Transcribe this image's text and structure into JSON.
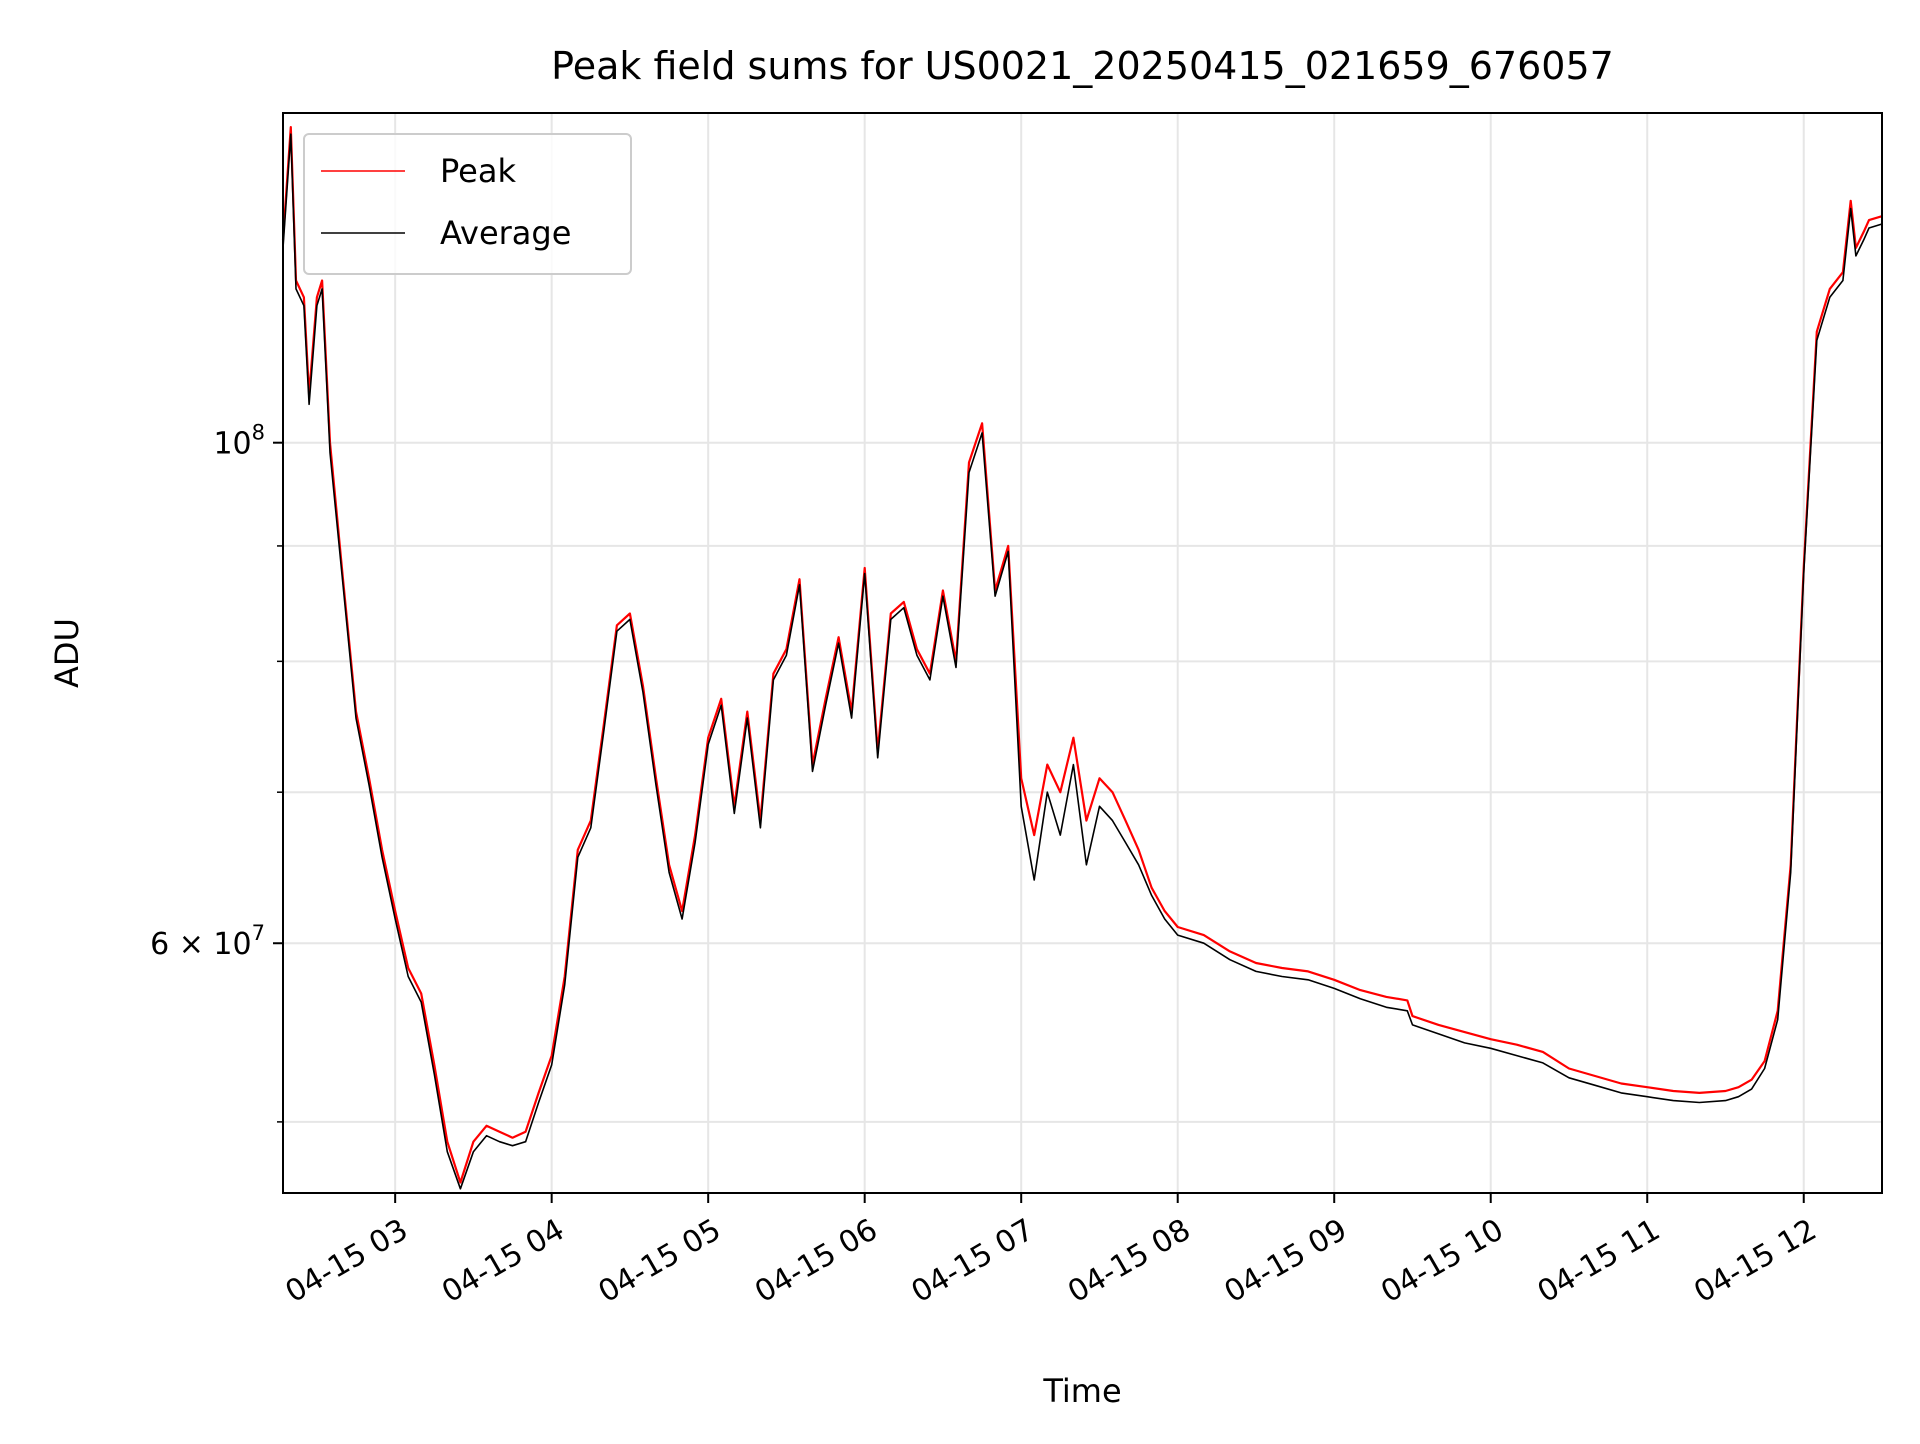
{
  "chart_data": {
    "type": "line",
    "title": "Peak field sums for US0021_20250415_021659_676057",
    "xlabel": "Time",
    "ylabel": "ADU",
    "y_scale": "log",
    "xlim": [
      "2025-04-15 02:17",
      "2025-04-15 12:30"
    ],
    "ylim": [
      46500000,
      140000000
    ],
    "grid": true,
    "legend_position": "top-left",
    "x_ticks": [
      {
        "t": "2025-04-15 03:00",
        "label": "04-15 03"
      },
      {
        "t": "2025-04-15 04:00",
        "label": "04-15 04"
      },
      {
        "t": "2025-04-15 05:00",
        "label": "04-15 05"
      },
      {
        "t": "2025-04-15 06:00",
        "label": "04-15 06"
      },
      {
        "t": "2025-04-15 07:00",
        "label": "04-15 07"
      },
      {
        "t": "2025-04-15 08:00",
        "label": "04-15 08"
      },
      {
        "t": "2025-04-15 09:00",
        "label": "04-15 09"
      },
      {
        "t": "2025-04-15 10:00",
        "label": "04-15 10"
      },
      {
        "t": "2025-04-15 11:00",
        "label": "04-15 11"
      },
      {
        "t": "2025-04-15 12:00",
        "label": "04-15 12"
      }
    ],
    "y_major_ticks": [
      {
        "value": 60000000,
        "base": "6 × 10",
        "exp": "7"
      },
      {
        "value": 100000000,
        "base": "10",
        "exp": "8"
      }
    ],
    "y_minor_ticks": [
      50000000,
      70000000,
      80000000,
      90000000
    ],
    "series": [
      {
        "name": "Peak",
        "color": "#ff0000",
        "x": [
          "2025-04-15 02:17",
          "2025-04-15 02:20",
          "2025-04-15 02:22",
          "2025-04-15 02:25",
          "2025-04-15 02:27",
          "2025-04-15 02:30",
          "2025-04-15 02:32",
          "2025-04-15 02:35",
          "2025-04-15 02:40",
          "2025-04-15 02:45",
          "2025-04-15 02:50",
          "2025-04-15 02:55",
          "2025-04-15 03:00",
          "2025-04-15 03:05",
          "2025-04-15 03:10",
          "2025-04-15 03:15",
          "2025-04-15 03:20",
          "2025-04-15 03:25",
          "2025-04-15 03:30",
          "2025-04-15 03:35",
          "2025-04-15 03:40",
          "2025-04-15 03:45",
          "2025-04-15 03:50",
          "2025-04-15 03:55",
          "2025-04-15 04:00",
          "2025-04-15 04:05",
          "2025-04-15 04:10",
          "2025-04-15 04:15",
          "2025-04-15 04:20",
          "2025-04-15 04:25",
          "2025-04-15 04:30",
          "2025-04-15 04:35",
          "2025-04-15 04:40",
          "2025-04-15 04:45",
          "2025-04-15 04:50",
          "2025-04-15 04:55",
          "2025-04-15 05:00",
          "2025-04-15 05:05",
          "2025-04-15 05:10",
          "2025-04-15 05:15",
          "2025-04-15 05:20",
          "2025-04-15 05:25",
          "2025-04-15 05:30",
          "2025-04-15 05:35",
          "2025-04-15 05:40",
          "2025-04-15 05:45",
          "2025-04-15 05:50",
          "2025-04-15 05:55",
          "2025-04-15 06:00",
          "2025-04-15 06:05",
          "2025-04-15 06:10",
          "2025-04-15 06:15",
          "2025-04-15 06:20",
          "2025-04-15 06:25",
          "2025-04-15 06:30",
          "2025-04-15 06:35",
          "2025-04-15 06:40",
          "2025-04-15 06:45",
          "2025-04-15 06:50",
          "2025-04-15 06:55",
          "2025-04-15 07:00",
          "2025-04-15 07:05",
          "2025-04-15 07:10",
          "2025-04-15 07:15",
          "2025-04-15 07:20",
          "2025-04-15 07:25",
          "2025-04-15 07:30",
          "2025-04-15 07:35",
          "2025-04-15 07:40",
          "2025-04-15 07:45",
          "2025-04-15 07:50",
          "2025-04-15 07:55",
          "2025-04-15 08:00",
          "2025-04-15 08:10",
          "2025-04-15 08:20",
          "2025-04-15 08:30",
          "2025-04-15 08:40",
          "2025-04-15 08:50",
          "2025-04-15 09:00",
          "2025-04-15 09:10",
          "2025-04-15 09:20",
          "2025-04-15 09:28",
          "2025-04-15 09:30",
          "2025-04-15 09:40",
          "2025-04-15 09:50",
          "2025-04-15 10:00",
          "2025-04-15 10:10",
          "2025-04-15 10:20",
          "2025-04-15 10:30",
          "2025-04-15 10:40",
          "2025-04-15 10:50",
          "2025-04-15 11:00",
          "2025-04-15 11:10",
          "2025-04-15 11:20",
          "2025-04-15 11:30",
          "2025-04-15 11:35",
          "2025-04-15 11:40",
          "2025-04-15 11:45",
          "2025-04-15 11:50",
          "2025-04-15 11:55",
          "2025-04-15 12:00",
          "2025-04-15 12:05",
          "2025-04-15 12:10",
          "2025-04-15 12:15",
          "2025-04-15 12:18",
          "2025-04-15 12:20",
          "2025-04-15 12:23",
          "2025-04-15 12:25",
          "2025-04-15 12:30"
        ],
        "values": [
          123000000,
          138000000,
          118000000,
          116000000,
          105000000,
          116000000,
          118000000,
          100000000,
          87000000,
          76000000,
          71000000,
          66000000,
          62000000,
          58500000,
          57000000,
          53000000,
          49000000,
          47000000,
          49000000,
          49800000,
          49500000,
          49200000,
          49500000,
          51500000,
          53500000,
          58000000,
          66000000,
          68000000,
          75000000,
          83000000,
          84000000,
          78000000,
          71000000,
          65000000,
          62000000,
          67000000,
          74000000,
          77000000,
          69000000,
          76000000,
          68000000,
          79000000,
          81000000,
          87000000,
          72000000,
          77000000,
          82000000,
          76000000,
          88000000,
          73000000,
          84000000,
          85000000,
          81000000,
          79000000,
          86000000,
          80000000,
          98000000,
          102000000,
          86000000,
          90000000,
          71000000,
          67000000,
          72000000,
          70000000,
          74000000,
          68000000,
          71000000,
          70000000,
          68000000,
          66000000,
          63500000,
          62000000,
          61000000,
          60500000,
          59500000,
          58800000,
          58500000,
          58300000,
          57800000,
          57200000,
          56800000,
          56600000,
          55700000,
          55200000,
          54800000,
          54400000,
          54100000,
          53700000,
          52800000,
          52400000,
          52000000,
          51800000,
          51600000,
          51500000,
          51600000,
          51800000,
          52200000,
          53200000,
          56000000,
          65000000,
          88000000,
          112000000,
          117000000,
          119000000,
          128000000,
          122000000,
          124000000,
          125500000,
          126000000
        ]
      },
      {
        "name": "Average",
        "color": "#000000",
        "x": [
          "2025-04-15 02:17",
          "2025-04-15 02:20",
          "2025-04-15 02:22",
          "2025-04-15 02:25",
          "2025-04-15 02:27",
          "2025-04-15 02:30",
          "2025-04-15 02:32",
          "2025-04-15 02:35",
          "2025-04-15 02:40",
          "2025-04-15 02:45",
          "2025-04-15 02:50",
          "2025-04-15 02:55",
          "2025-04-15 03:00",
          "2025-04-15 03:05",
          "2025-04-15 03:10",
          "2025-04-15 03:15",
          "2025-04-15 03:20",
          "2025-04-15 03:25",
          "2025-04-15 03:30",
          "2025-04-15 03:35",
          "2025-04-15 03:40",
          "2025-04-15 03:45",
          "2025-04-15 03:50",
          "2025-04-15 03:55",
          "2025-04-15 04:00",
          "2025-04-15 04:05",
          "2025-04-15 04:10",
          "2025-04-15 04:15",
          "2025-04-15 04:20",
          "2025-04-15 04:25",
          "2025-04-15 04:30",
          "2025-04-15 04:35",
          "2025-04-15 04:40",
          "2025-04-15 04:45",
          "2025-04-15 04:50",
          "2025-04-15 04:55",
          "2025-04-15 05:00",
          "2025-04-15 05:05",
          "2025-04-15 05:10",
          "2025-04-15 05:15",
          "2025-04-15 05:20",
          "2025-04-15 05:25",
          "2025-04-15 05:30",
          "2025-04-15 05:35",
          "2025-04-15 05:40",
          "2025-04-15 05:45",
          "2025-04-15 05:50",
          "2025-04-15 05:55",
          "2025-04-15 06:00",
          "2025-04-15 06:05",
          "2025-04-15 06:10",
          "2025-04-15 06:15",
          "2025-04-15 06:20",
          "2025-04-15 06:25",
          "2025-04-15 06:30",
          "2025-04-15 06:35",
          "2025-04-15 06:40",
          "2025-04-15 06:45",
          "2025-04-15 06:50",
          "2025-04-15 06:55",
          "2025-04-15 07:00",
          "2025-04-15 07:05",
          "2025-04-15 07:10",
          "2025-04-15 07:15",
          "2025-04-15 07:20",
          "2025-04-15 07:25",
          "2025-04-15 07:30",
          "2025-04-15 07:35",
          "2025-04-15 07:40",
          "2025-04-15 07:45",
          "2025-04-15 07:50",
          "2025-04-15 07:55",
          "2025-04-15 08:00",
          "2025-04-15 08:10",
          "2025-04-15 08:20",
          "2025-04-15 08:30",
          "2025-04-15 08:40",
          "2025-04-15 08:50",
          "2025-04-15 09:00",
          "2025-04-15 09:10",
          "2025-04-15 09:20",
          "2025-04-15 09:28",
          "2025-04-15 09:30",
          "2025-04-15 09:40",
          "2025-04-15 09:50",
          "2025-04-15 10:00",
          "2025-04-15 10:10",
          "2025-04-15 10:20",
          "2025-04-15 10:30",
          "2025-04-15 10:40",
          "2025-04-15 10:50",
          "2025-04-15 11:00",
          "2025-04-15 11:10",
          "2025-04-15 11:20",
          "2025-04-15 11:30",
          "2025-04-15 11:35",
          "2025-04-15 11:40",
          "2025-04-15 11:45",
          "2025-04-15 11:50",
          "2025-04-15 11:55",
          "2025-04-15 12:00",
          "2025-04-15 12:05",
          "2025-04-15 12:10",
          "2025-04-15 12:15",
          "2025-04-15 12:18",
          "2025-04-15 12:20",
          "2025-04-15 12:23",
          "2025-04-15 12:25",
          "2025-04-15 12:30"
        ],
        "values": [
          122000000,
          137000000,
          117000000,
          115000000,
          104000000,
          115000000,
          117000000,
          99000000,
          86500000,
          75500000,
          70500000,
          65500000,
          61500000,
          58000000,
          56500000,
          52500000,
          48500000,
          46700000,
          48500000,
          49300000,
          49000000,
          48800000,
          49000000,
          51000000,
          53000000,
          57500000,
          65500000,
          67500000,
          74500000,
          82500000,
          83500000,
          77500000,
          70500000,
          64500000,
          61500000,
          66500000,
          73500000,
          76500000,
          68500000,
          75500000,
          67500000,
          78500000,
          80500000,
          86500000,
          71500000,
          76500000,
          81500000,
          75500000,
          87500000,
          72500000,
          83500000,
          84500000,
          80500000,
          78500000,
          85500000,
          79500000,
          97000000,
          101000000,
          85500000,
          89500000,
          69000000,
          64000000,
          70000000,
          67000000,
          72000000,
          65000000,
          69000000,
          68000000,
          66500000,
          65000000,
          63000000,
          61500000,
          60500000,
          60000000,
          59000000,
          58300000,
          58000000,
          57800000,
          57300000,
          56700000,
          56200000,
          56000000,
          55200000,
          54700000,
          54200000,
          53900000,
          53500000,
          53100000,
          52300000,
          51900000,
          51500000,
          51300000,
          51100000,
          51000000,
          51100000,
          51300000,
          51700000,
          52800000,
          55500000,
          64500000,
          87500000,
          111000000,
          116000000,
          118000000,
          127000000,
          121000000,
          123000000,
          124500000,
          125000000
        ]
      }
    ]
  }
}
